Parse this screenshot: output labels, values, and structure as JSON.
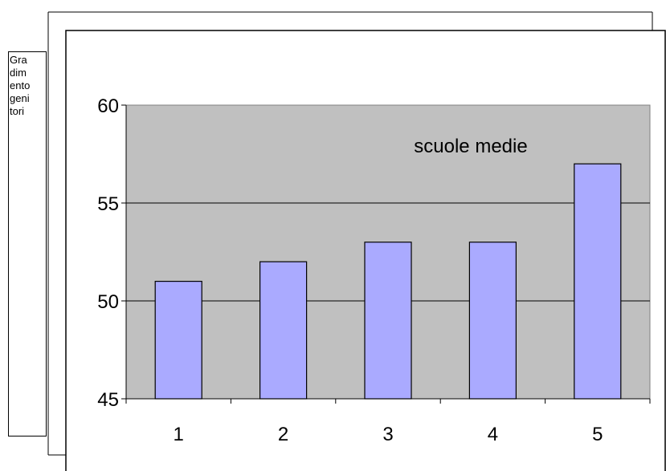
{
  "chart_data": {
    "type": "bar",
    "title": "",
    "annotation": "scuole medie",
    "side_label": [
      "Gra",
      "dim",
      "ento",
      "geni",
      "tori"
    ],
    "xlabel": "",
    "ylabel": "",
    "categories": [
      "1",
      "2",
      "3",
      "4",
      "5"
    ],
    "values": [
      51,
      52,
      53,
      53,
      57
    ],
    "ylim": [
      45,
      60
    ],
    "yticks": [
      45,
      50,
      55,
      60
    ],
    "grid": true,
    "colors": {
      "bar_fill": "#aaaaff",
      "bar_stroke": "#000000",
      "plot_background": "#c0c0c0"
    }
  }
}
